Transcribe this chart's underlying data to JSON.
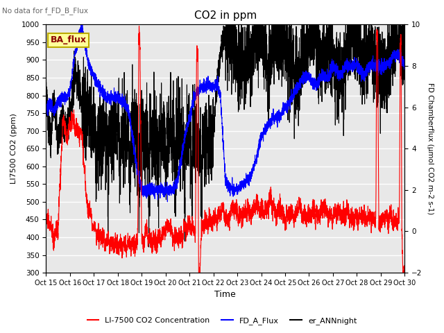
{
  "title": "CO2 in ppm",
  "top_left_text": "No data for f_FD_B_Flux",
  "annotation_text": "BA_flux",
  "xlabel": "Time",
  "ylabel_left": "LI7500 CO2 (ppm)",
  "ylabel_right": "FD Chamberflux (μmol CO2 m-2 s-1)",
  "ylim_left": [
    300,
    1000
  ],
  "ylim_right": [
    -2,
    10
  ],
  "xtick_labels": [
    "Oct 15",
    "Oct 16",
    "Oct 17",
    "Oct 18",
    "Oct 19",
    "Oct 20",
    "Oct 21",
    "Oct 22",
    "Oct 23",
    "Oct 24",
    "Oct 25",
    "Oct 26",
    "Oct 27",
    "Oct 28",
    "Oct 29",
    "Oct 30"
  ],
  "yticks_left": [
    300,
    350,
    400,
    450,
    500,
    550,
    600,
    650,
    700,
    750,
    800,
    850,
    900,
    950,
    1000
  ],
  "yticks_right": [
    -2,
    0,
    2,
    4,
    6,
    8,
    10
  ],
  "legend_labels": [
    "LI-7500 CO2 Concentration",
    "FD_A_Flux",
    "er_ANNnight"
  ],
  "line_width": 0.8,
  "background_color": "#e8e8e8",
  "grid_color": "white"
}
